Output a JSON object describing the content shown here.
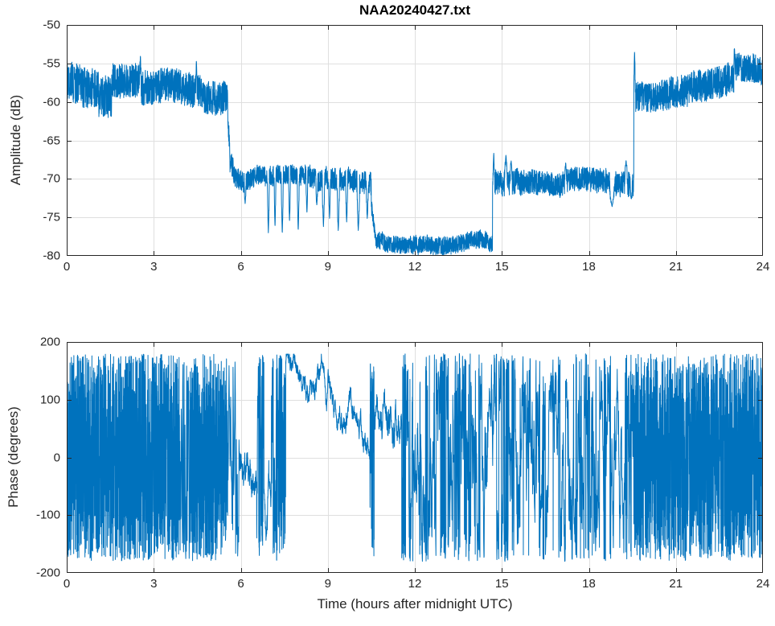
{
  "figure": {
    "background": "#ffffff",
    "line_color": "#0072BD",
    "axis_color": "#262626",
    "grid_color": "rgba(38,38,38,0.15)",
    "tick_label_color": "#262626"
  },
  "chart_data": [
    {
      "id": "amplitude",
      "type": "line",
      "title": "NAA20240427.txt",
      "ylabel": "Amplitude (dB)",
      "xlabel": "",
      "xlim": [
        0,
        24
      ],
      "ylim": [
        -80,
        -50
      ],
      "xticks": [
        0,
        3,
        6,
        9,
        12,
        15,
        18,
        21,
        24
      ],
      "yticks": [
        -80,
        -75,
        -70,
        -65,
        -60,
        -55,
        -50
      ],
      "grid": true,
      "legend": false,
      "series": [
        {
          "name": "NAA amplitude",
          "color": "#0072BD",
          "model": "banded_noise",
          "samples_per_hour": 220,
          "segments": [
            {
              "t0": 0.0,
              "t1": 0.45,
              "v0": -57.2,
              "v1": -57.4,
              "noise": 2.6
            },
            {
              "t0": 0.45,
              "t1": 1.1,
              "v0": -57.8,
              "v1": -57.8,
              "noise": 2.6
            },
            {
              "t0": 1.1,
              "t1": 1.55,
              "v0": -59.2,
              "v1": -59.2,
              "noise": 2.7
            },
            {
              "t0": 1.55,
              "t1": 2.52,
              "v0": -56.9,
              "v1": -57.1,
              "noise": 2.3
            },
            {
              "t0": 2.52,
              "t1": 3.6,
              "v0": -58.0,
              "v1": -58.3,
              "noise": 2.3
            },
            {
              "t0": 3.6,
              "t1": 5.55,
              "v0": -58.4,
              "v1": -59.3,
              "noise": 2.2
            },
            {
              "t0": 5.55,
              "t1": 5.62,
              "v0": -62.0,
              "v1": -66.0,
              "noise": 1.5
            },
            {
              "t0": 5.62,
              "t1": 5.8,
              "v0": -67.5,
              "v1": -69.8,
              "noise": 1.5
            },
            {
              "t0": 5.8,
              "t1": 7.0,
              "v0": -70.2,
              "v1": -70.3,
              "noise": 1.3
            },
            {
              "t0": 7.0,
              "t1": 8.35,
              "v0": -70.2,
              "v1": -70.2,
              "noise": 1.3
            },
            {
              "t0": 8.35,
              "t1": 10.5,
              "v0": -70.4,
              "v1": -70.8,
              "noise": 1.5
            },
            {
              "t0": 10.5,
              "t1": 10.62,
              "v0": -73.5,
              "v1": -77.0,
              "noise": 1.0
            },
            {
              "t0": 10.62,
              "t1": 14.68,
              "v0": -77.9,
              "v1": -78.1,
              "noise": 1.15
            },
            {
              "t0": 14.68,
              "t1": 14.78,
              "v0": -71.5,
              "v1": -70.5,
              "noise": 1.5
            },
            {
              "t0": 14.78,
              "t1": 19.55,
              "v0": -70.4,
              "v1": -70.7,
              "noise": 1.6
            },
            {
              "t0": 19.55,
              "t1": 19.62,
              "v0": -58.0,
              "v1": -60.0,
              "noise": 1.8
            },
            {
              "t0": 19.62,
              "t1": 20.4,
              "v0": -59.6,
              "v1": -58.9,
              "noise": 1.9
            },
            {
              "t0": 20.4,
              "t1": 23.0,
              "v0": -58.6,
              "v1": -56.3,
              "noise": 2.1
            },
            {
              "t0": 23.0,
              "t1": 24.0,
              "v0": -55.0,
              "v1": -55.4,
              "noise": 1.9
            }
          ],
          "spikes": [
            {
              "t": 2.54,
              "v": -53.9,
              "w": 0.025
            },
            {
              "t": 4.47,
              "v": -54.6,
              "w": 0.02
            },
            {
              "t": 6.15,
              "v": -73.2,
              "w": 0.03
            },
            {
              "t": 6.95,
              "v": -77.0,
              "w": 0.035
            },
            {
              "t": 7.18,
              "v": -76.3,
              "w": 0.03
            },
            {
              "t": 7.43,
              "v": -77.2,
              "w": 0.035
            },
            {
              "t": 7.68,
              "v": -75.6,
              "w": 0.03
            },
            {
              "t": 7.98,
              "v": -76.8,
              "w": 0.035
            },
            {
              "t": 8.28,
              "v": -74.5,
              "w": 0.03
            },
            {
              "t": 8.62,
              "v": -73.5,
              "w": 0.03
            },
            {
              "t": 8.85,
              "v": -76.2,
              "w": 0.04
            },
            {
              "t": 9.06,
              "v": -75.2,
              "w": 0.03
            },
            {
              "t": 9.36,
              "v": -76.8,
              "w": 0.04
            },
            {
              "t": 9.65,
              "v": -75.6,
              "w": 0.035
            },
            {
              "t": 10.05,
              "v": -76.7,
              "w": 0.045
            },
            {
              "t": 10.36,
              "v": -75.2,
              "w": 0.035
            },
            {
              "t": 14.72,
              "v": -66.6,
              "w": 0.03
            },
            {
              "t": 15.14,
              "v": -66.9,
              "w": 0.05
            },
            {
              "t": 15.32,
              "v": -67.6,
              "w": 0.04
            },
            {
              "t": 17.2,
              "v": -67.9,
              "w": 0.04
            },
            {
              "t": 18.8,
              "v": -73.6,
              "w": 0.09
            },
            {
              "t": 19.28,
              "v": -67.6,
              "w": 0.05
            },
            {
              "t": 19.46,
              "v": -72.6,
              "w": 0.04
            },
            {
              "t": 19.575,
              "v": -53.3,
              "w": 0.022
            },
            {
              "t": 23.02,
              "v": -52.9,
              "w": 0.022
            }
          ]
        }
      ]
    },
    {
      "id": "phase",
      "type": "line",
      "title": "",
      "ylabel": "Phase (degrees)",
      "xlabel": "Time (hours after midnight UTC)",
      "xlim": [
        0,
        24
      ],
      "ylim": [
        -200,
        200
      ],
      "xticks": [
        0,
        3,
        6,
        9,
        12,
        15,
        18,
        21,
        24
      ],
      "yticks": [
        -200,
        -100,
        0,
        100,
        200
      ],
      "grid": true,
      "legend": false,
      "series": [
        {
          "name": "NAA phase",
          "color": "#0072BD",
          "model": "phase_modes",
          "samples_per_hour": 260,
          "segments": [
            {
              "t0": 0.0,
              "t1": 3.9,
              "mode": "uniform",
              "dt_mult": 0.8
            },
            {
              "t0": 3.9,
              "t1": 4.25,
              "mode": "uniform",
              "dt_mult": 2.5
            },
            {
              "t0": 4.25,
              "t1": 5.55,
              "mode": "uniform",
              "dt_mult": 0.8
            },
            {
              "t0": 5.55,
              "t1": 5.95,
              "mode": "uniform",
              "dt_mult": 3.0
            },
            {
              "t0": 5.95,
              "t1": 6.55,
              "mode": "walk",
              "v0": -15,
              "v1": -55,
              "step": 10,
              "revert": 0.1
            },
            {
              "t0": 6.55,
              "t1": 6.8,
              "mode": "wrapwalk",
              "v0": -120,
              "step": 45
            },
            {
              "t0": 6.8,
              "t1": 7.05,
              "mode": "walk",
              "v0": -60,
              "v1": -120,
              "step": 12,
              "revert": 0.08
            },
            {
              "t0": 7.05,
              "t1": 7.3,
              "mode": "wrapwalk",
              "step": 60
            },
            {
              "t0": 7.3,
              "t1": 7.55,
              "mode": "uniform",
              "dt_mult": 0.9
            },
            {
              "t0": 7.55,
              "t1": 8.6,
              "mode": "walk",
              "v0": 172,
              "v1": 115,
              "step": 6,
              "revert": 0.04
            },
            {
              "t0": 8.6,
              "t1": 10.45,
              "mode": "walk",
              "v0": 115,
              "v1": 38,
              "step": 6,
              "revert": 0.035
            },
            {
              "t0": 10.45,
              "t1": 10.6,
              "mode": "wrapwalk",
              "v0": 60,
              "step": 70
            },
            {
              "t0": 10.6,
              "t1": 11.55,
              "mode": "walk",
              "v0": 75,
              "v1": 85,
              "step": 9,
              "revert": 0.05
            },
            {
              "t0": 11.55,
              "t1": 11.95,
              "mode": "wrapwalk",
              "v0": 100,
              "step": 45
            },
            {
              "t0": 11.95,
              "t1": 13.2,
              "mode": "wrapwalk",
              "step": 40,
              "dt_mult": 1.5
            },
            {
              "t0": 13.2,
              "t1": 14.1,
              "mode": "wrapwalk",
              "step": 62,
              "dt_mult": 1.5
            },
            {
              "t0": 14.1,
              "t1": 15.1,
              "mode": "wrapwalk",
              "step": 35,
              "dt_mult": 1.5
            },
            {
              "t0": 15.1,
              "t1": 16.3,
              "mode": "wrapwalk",
              "step": 58,
              "dt_mult": 1.5
            },
            {
              "t0": 16.3,
              "t1": 17.3,
              "mode": "wrapwalk",
              "step": 40,
              "dt_mult": 1.5
            },
            {
              "t0": 17.3,
              "t1": 18.3,
              "mode": "wrapwalk",
              "step": 56,
              "dt_mult": 1.5
            },
            {
              "t0": 18.3,
              "t1": 19.0,
              "mode": "wrapwalk",
              "step": 38,
              "dt_mult": 1.5
            },
            {
              "t0": 19.0,
              "t1": 19.55,
              "mode": "wrapwalk",
              "step": 52,
              "dt_mult": 1.5
            },
            {
              "t0": 19.55,
              "t1": 24.0,
              "mode": "uniform",
              "dt_mult": 0.8
            }
          ]
        }
      ]
    }
  ]
}
